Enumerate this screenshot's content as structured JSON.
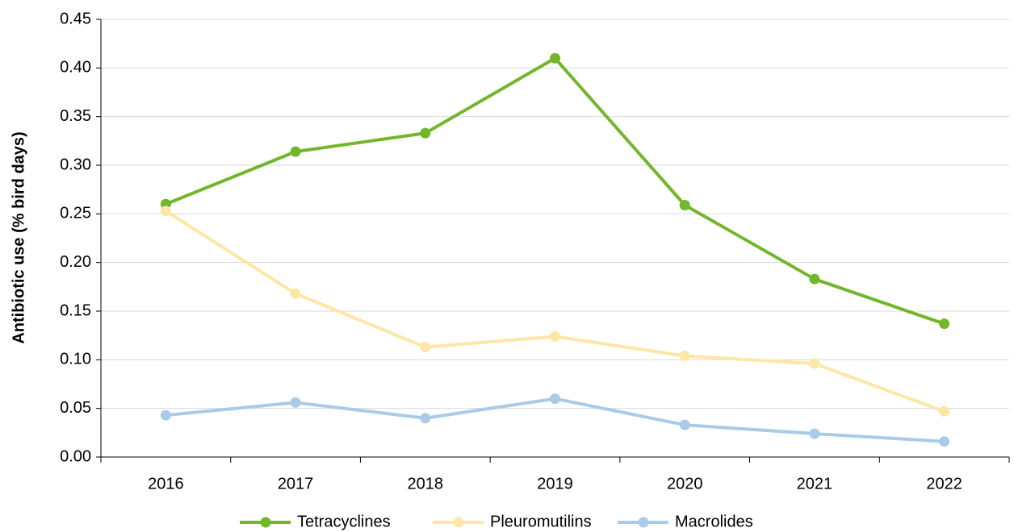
{
  "chart_data": {
    "type": "line",
    "y_label": "Antibiotic use (% bird days)",
    "categories": [
      "2016",
      "2017",
      "2018",
      "2019",
      "2020",
      "2021",
      "2022"
    ],
    "series": [
      {
        "name": "Tetracyclines",
        "color": "#72b62b",
        "values": [
          0.26,
          0.314,
          0.333,
          0.41,
          0.259,
          0.183,
          0.137
        ]
      },
      {
        "name": "Pleuromutilins",
        "color": "#fde7a6",
        "values": [
          0.253,
          0.168,
          0.113,
          0.124,
          0.104,
          0.096,
          0.047
        ]
      },
      {
        "name": "Macrolides",
        "color": "#a9cbe8",
        "values": [
          0.043,
          0.056,
          0.04,
          0.06,
          0.033,
          0.024,
          0.016
        ]
      }
    ],
    "ylim": [
      0,
      0.45
    ],
    "yticks": [
      {
        "value": 0,
        "label": "0.00"
      },
      {
        "value": 0.05,
        "label": "0.05"
      },
      {
        "value": 0.1,
        "label": "0.10"
      },
      {
        "value": 0.15,
        "label": "0.15"
      },
      {
        "value": 0.2,
        "label": "0.20"
      },
      {
        "value": 0.25,
        "label": "0.25"
      },
      {
        "value": 0.3,
        "label": "0.30"
      },
      {
        "value": 0.35,
        "label": "0.35"
      },
      {
        "value": 0.4,
        "label": "0.40"
      },
      {
        "value": 0.45,
        "label": "0.45"
      }
    ],
    "grid": true,
    "legend": "bottom"
  }
}
